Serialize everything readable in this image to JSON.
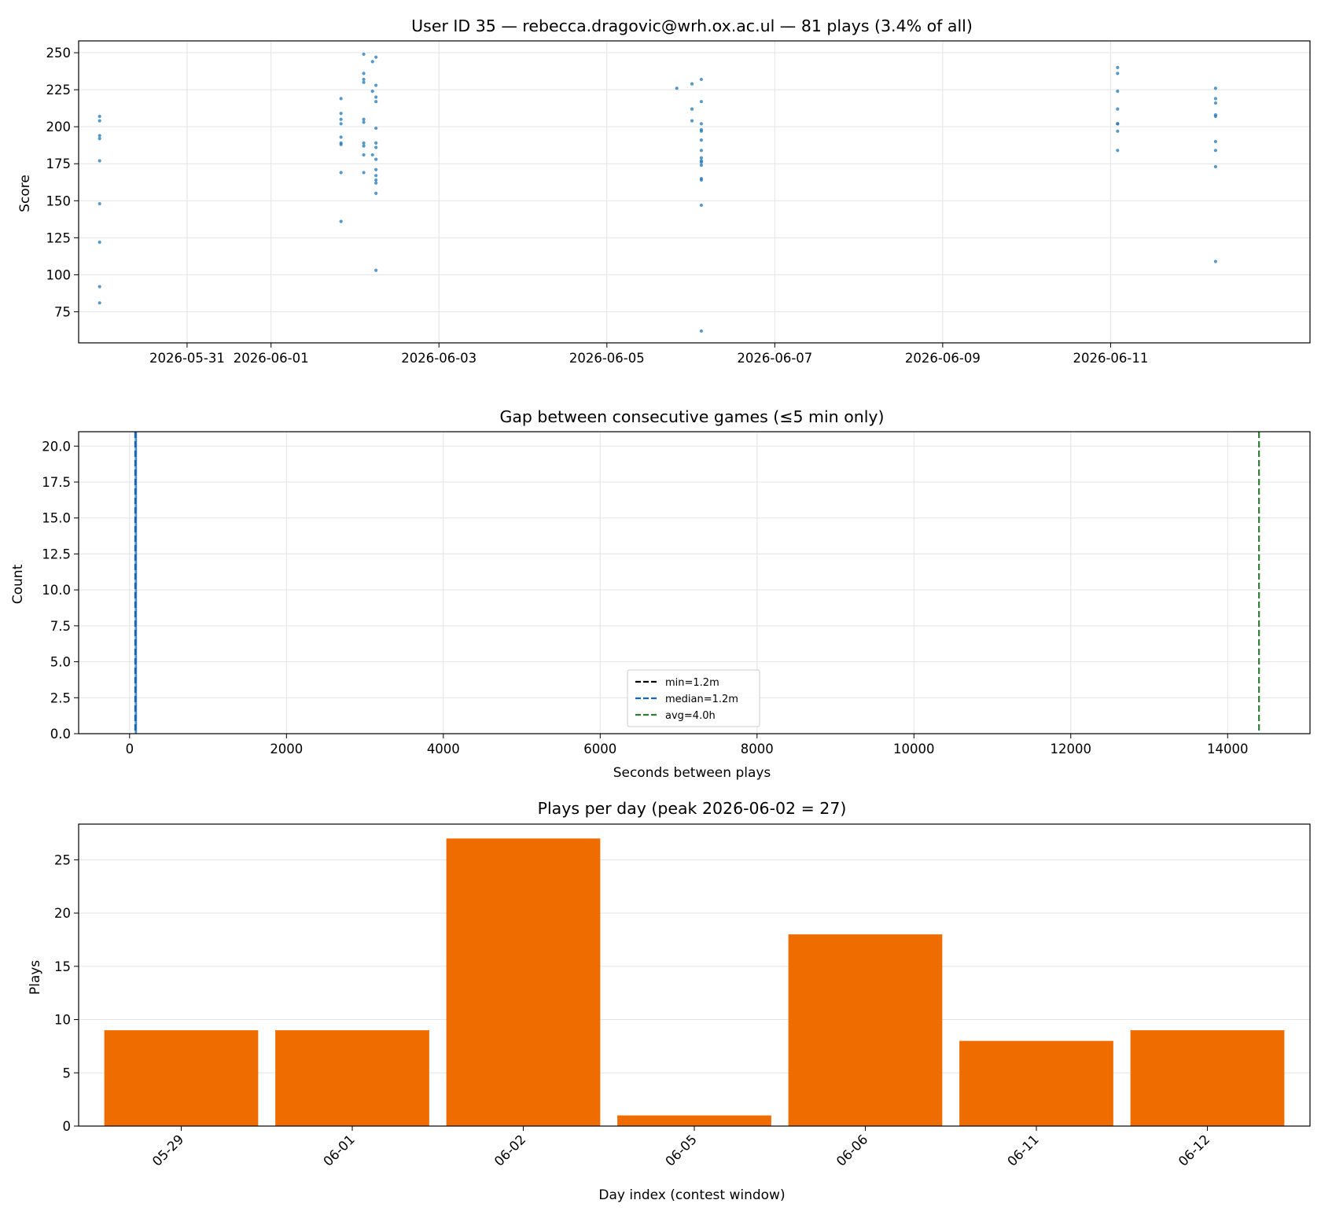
{
  "chart_data": [
    {
      "type": "scatter",
      "title": "User ID 35 — rebecca.dragovic@wrh.ox.ac.ul — 81 plays (3.4% of all)",
      "xlabel": "",
      "ylabel": "Score",
      "x_ticks": [
        "2026-05-31",
        "2026-06-01",
        "2026-06-03",
        "2026-06-05",
        "2026-06-07",
        "2026-06-09",
        "2026-06-11"
      ],
      "y_ticks": [
        75,
        100,
        125,
        150,
        175,
        200,
        225,
        250
      ],
      "xlim": [
        "2026-05-29T17:00",
        "2026-06-13T09:00"
      ],
      "ylim": [
        54,
        258
      ],
      "grid": true,
      "color": "#1f77b4",
      "points": [
        {
          "x": "2026-05-29T23:00",
          "y": 207
        },
        {
          "x": "2026-05-29T23:00",
          "y": 204
        },
        {
          "x": "2026-05-29T23:00",
          "y": 194
        },
        {
          "x": "2026-05-29T23:00",
          "y": 192
        },
        {
          "x": "2026-05-29T23:00",
          "y": 177
        },
        {
          "x": "2026-05-29T23:00",
          "y": 148
        },
        {
          "x": "2026-05-29T23:00",
          "y": 122
        },
        {
          "x": "2026-05-29T23:00",
          "y": 92
        },
        {
          "x": "2026-05-29T23:00",
          "y": 81
        },
        {
          "x": "2026-06-01T20:00",
          "y": 219
        },
        {
          "x": "2026-06-01T20:00",
          "y": 209
        },
        {
          "x": "2026-06-01T20:00",
          "y": 205
        },
        {
          "x": "2026-06-01T20:00",
          "y": 202
        },
        {
          "x": "2026-06-01T20:00",
          "y": 193
        },
        {
          "x": "2026-06-01T20:00",
          "y": 189
        },
        {
          "x": "2026-06-01T20:00",
          "y": 188
        },
        {
          "x": "2026-06-01T20:00",
          "y": 169
        },
        {
          "x": "2026-06-01T20:00",
          "y": 136
        },
        {
          "x": "2026-06-02T02:30",
          "y": 249
        },
        {
          "x": "2026-06-02T02:30",
          "y": 236
        },
        {
          "x": "2026-06-02T02:30",
          "y": 232
        },
        {
          "x": "2026-06-02T02:30",
          "y": 230
        },
        {
          "x": "2026-06-02T02:30",
          "y": 205
        },
        {
          "x": "2026-06-02T02:30",
          "y": 203
        },
        {
          "x": "2026-06-02T02:30",
          "y": 189
        },
        {
          "x": "2026-06-02T02:30",
          "y": 187
        },
        {
          "x": "2026-06-02T02:30",
          "y": 181
        },
        {
          "x": "2026-06-02T02:30",
          "y": 169
        },
        {
          "x": "2026-06-02T05:00",
          "y": 244
        },
        {
          "x": "2026-06-02T05:00",
          "y": 224
        },
        {
          "x": "2026-06-02T05:00",
          "y": 181
        },
        {
          "x": "2026-06-02T06:00",
          "y": 247
        },
        {
          "x": "2026-06-02T06:00",
          "y": 228
        },
        {
          "x": "2026-06-02T06:00",
          "y": 220
        },
        {
          "x": "2026-06-02T06:00",
          "y": 217
        },
        {
          "x": "2026-06-02T06:00",
          "y": 199
        },
        {
          "x": "2026-06-02T06:00",
          "y": 189
        },
        {
          "x": "2026-06-02T06:00",
          "y": 186
        },
        {
          "x": "2026-06-02T06:00",
          "y": 178
        },
        {
          "x": "2026-06-02T06:00",
          "y": 171
        },
        {
          "x": "2026-06-02T06:00",
          "y": 167
        },
        {
          "x": "2026-06-02T06:00",
          "y": 164
        },
        {
          "x": "2026-06-02T06:00",
          "y": 162
        },
        {
          "x": "2026-06-02T06:00",
          "y": 155
        },
        {
          "x": "2026-06-02T06:00",
          "y": 103
        },
        {
          "x": "2026-06-05T20:00",
          "y": 226
        },
        {
          "x": "2026-06-06T00:20",
          "y": 229
        },
        {
          "x": "2026-06-06T00:20",
          "y": 212
        },
        {
          "x": "2026-06-06T00:20",
          "y": 204
        },
        {
          "x": "2026-06-06T03:00",
          "y": 232
        },
        {
          "x": "2026-06-06T03:00",
          "y": 217
        },
        {
          "x": "2026-06-06T03:00",
          "y": 202
        },
        {
          "x": "2026-06-06T03:00",
          "y": 198
        },
        {
          "x": "2026-06-06T03:00",
          "y": 197
        },
        {
          "x": "2026-06-06T03:00",
          "y": 191
        },
        {
          "x": "2026-06-06T03:00",
          "y": 184
        },
        {
          "x": "2026-06-06T03:00",
          "y": 179
        },
        {
          "x": "2026-06-06T03:00",
          "y": 177
        },
        {
          "x": "2026-06-06T03:00",
          "y": 176
        },
        {
          "x": "2026-06-06T03:00",
          "y": 174
        },
        {
          "x": "2026-06-06T03:00",
          "y": 165
        },
        {
          "x": "2026-06-06T03:00",
          "y": 164
        },
        {
          "x": "2026-06-06T03:00",
          "y": 147
        },
        {
          "x": "2026-06-06T03:00",
          "y": 62
        },
        {
          "x": "2026-06-11T02:00",
          "y": 240
        },
        {
          "x": "2026-06-11T02:00",
          "y": 236
        },
        {
          "x": "2026-06-11T02:00",
          "y": 224
        },
        {
          "x": "2026-06-11T02:00",
          "y": 212
        },
        {
          "x": "2026-06-11T02:00",
          "y": 202
        },
        {
          "x": "2026-06-11T02:00",
          "y": 202
        },
        {
          "x": "2026-06-11T02:00",
          "y": 197
        },
        {
          "x": "2026-06-11T02:00",
          "y": 184
        },
        {
          "x": "2026-06-12T06:00",
          "y": 226
        },
        {
          "x": "2026-06-12T06:00",
          "y": 219
        },
        {
          "x": "2026-06-12T06:00",
          "y": 216
        },
        {
          "x": "2026-06-12T06:00",
          "y": 208
        },
        {
          "x": "2026-06-12T06:00",
          "y": 207
        },
        {
          "x": "2026-06-12T06:00",
          "y": 190
        },
        {
          "x": "2026-06-12T06:00",
          "y": 184
        },
        {
          "x": "2026-06-12T06:00",
          "y": 173
        },
        {
          "x": "2026-06-12T06:00",
          "y": 109
        }
      ]
    },
    {
      "type": "histogram",
      "title": "Gap between consecutive games (≤5 min only)",
      "xlabel": "Seconds between plays",
      "ylabel": "Count",
      "x_ticks": [
        0,
        2000,
        4000,
        6000,
        8000,
        10000,
        12000,
        14000
      ],
      "y_ticks": [
        "0.0",
        "2.5",
        "5.0",
        "7.5",
        "10.0",
        "12.5",
        "15.0",
        "17.5",
        "20.0"
      ],
      "xlim": [
        -650,
        15050
      ],
      "ylim": [
        0,
        21
      ],
      "grid": true,
      "bins": [
        {
          "x0": 66,
          "x1": 80,
          "count": 21
        },
        {
          "x0": 80,
          "x1": 94,
          "count": 21
        }
      ],
      "bar_color": "#1f77b4",
      "reference_lines": [
        {
          "label": "min=1.2m",
          "value": 72,
          "color": "#000000"
        },
        {
          "label": "median=1.2m",
          "value": 72,
          "color": "#1565c0"
        },
        {
          "label": "avg=4.0h",
          "value": 14400,
          "color": "#2e7d32"
        }
      ],
      "legend_position": "lower-center"
    },
    {
      "type": "bar",
      "title": "Plays per day (peak 2026-06-02 = 27)",
      "xlabel": "Day index (contest window)",
      "ylabel": "Plays",
      "categories": [
        "05-29",
        "06-01",
        "06-02",
        "06-05",
        "06-06",
        "06-11",
        "06-12"
      ],
      "values": [
        9,
        9,
        27,
        1,
        18,
        8,
        9
      ],
      "y_ticks": [
        0,
        5,
        10,
        15,
        20,
        25
      ],
      "ylim": [
        0,
        28.35
      ],
      "grid": true,
      "color": "#ef6c00"
    }
  ]
}
